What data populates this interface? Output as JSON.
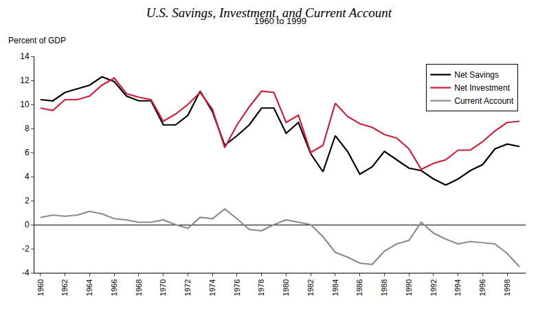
{
  "chart_data": {
    "type": "line",
    "title": "U.S. Savings, Investment, and Current Account",
    "subtitle": "1960 to 1999",
    "ylabel": "Percent of GDP",
    "x": [
      1960,
      1961,
      1962,
      1963,
      1964,
      1965,
      1966,
      1967,
      1968,
      1969,
      1970,
      1971,
      1972,
      1973,
      1974,
      1975,
      1976,
      1977,
      1978,
      1979,
      1980,
      1981,
      1982,
      1983,
      1984,
      1985,
      1986,
      1987,
      1988,
      1989,
      1990,
      1991,
      1992,
      1993,
      1994,
      1995,
      1996,
      1997,
      1998,
      1999
    ],
    "series": [
      {
        "name": "Net Savings",
        "color": "#000000",
        "values": [
          10.4,
          10.3,
          11.0,
          11.3,
          11.6,
          12.3,
          11.9,
          10.7,
          10.3,
          10.3,
          8.3,
          8.3,
          9.1,
          11.1,
          9.4,
          6.6,
          7.4,
          8.3,
          9.7,
          9.7,
          7.6,
          8.5,
          5.9,
          4.4,
          7.4,
          6.1,
          4.2,
          4.8,
          6.1,
          5.4,
          4.7,
          4.5,
          3.8,
          3.3,
          3.8,
          4.5,
          5.0,
          6.3,
          6.7,
          6.5
        ]
      },
      {
        "name": "Net Investment",
        "color": "#cc1f3c",
        "values": [
          9.7,
          9.5,
          10.4,
          10.4,
          10.7,
          11.6,
          12.2,
          10.9,
          10.6,
          10.4,
          8.6,
          9.2,
          10.0,
          11.0,
          9.6,
          6.4,
          8.3,
          9.8,
          11.1,
          11.0,
          8.5,
          9.1,
          6.0,
          6.6,
          10.1,
          9.0,
          8.4,
          8.1,
          7.5,
          7.2,
          6.3,
          4.6,
          5.1,
          5.4,
          6.2,
          6.2,
          6.9,
          7.8,
          8.5,
          8.6
        ]
      },
      {
        "name": "Current Account",
        "color": "#8c8c8c",
        "values": [
          0.6,
          0.8,
          0.7,
          0.8,
          1.1,
          0.9,
          0.5,
          0.4,
          0.2,
          0.2,
          0.4,
          0.0,
          -0.3,
          0.6,
          0.5,
          1.3,
          0.5,
          -0.4,
          -0.5,
          0.0,
          0.4,
          0.2,
          0.0,
          -1.0,
          -2.3,
          -2.7,
          -3.2,
          -3.3,
          -2.2,
          -1.6,
          -1.3,
          0.2,
          -0.7,
          -1.2,
          -1.6,
          -1.4,
          -1.5,
          -1.6,
          -2.4,
          -3.5
        ]
      }
    ],
    "xlim": [
      1959.5,
      1999.5
    ],
    "xticks": [
      1960,
      1962,
      1964,
      1966,
      1968,
      1970,
      1972,
      1974,
      1976,
      1978,
      1980,
      1982,
      1984,
      1986,
      1988,
      1990,
      1992,
      1994,
      1996,
      1998
    ],
    "ylim": [
      -4,
      14
    ],
    "yticks": [
      -4,
      -2,
      0,
      2,
      4,
      6,
      8,
      10,
      12,
      14
    ],
    "grid": false,
    "legend": "top right"
  }
}
